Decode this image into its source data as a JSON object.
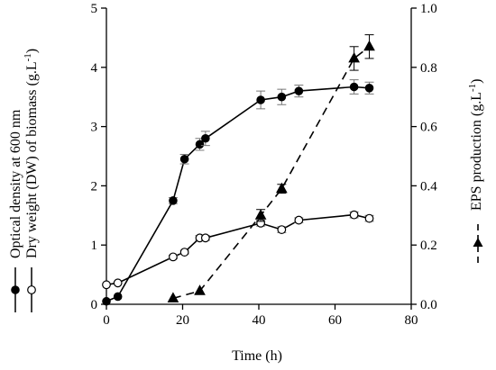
{
  "chart_data": {
    "type": "line",
    "xlabel": "Time (h)",
    "ylabel_left": [
      "Optical density at 600 nm",
      "Dry weight (DW) of biomass (g.L",
      "-1",
      ")"
    ],
    "ylabel_right": [
      "EPS production (g.L",
      "-1",
      ")"
    ],
    "xlim": [
      0,
      80
    ],
    "ylim_left": [
      0,
      5
    ],
    "ylim_right": [
      0,
      1.0
    ],
    "x_ticks": [
      "0",
      "20",
      "40",
      "60",
      "80"
    ],
    "y_left_ticks": [
      "0",
      "1",
      "2",
      "3",
      "4",
      "5"
    ],
    "y_right_ticks": [
      "0.0",
      "0.2",
      "0.4",
      "0.6",
      "0.8",
      "1.0"
    ],
    "series": [
      {
        "axis": "left",
        "marker": "filled-circle",
        "line": "solid",
        "x": [
          0,
          3,
          17.5,
          20.5,
          24.5,
          26,
          40.5,
          46,
          50.5,
          65,
          69
        ],
        "y": [
          0.05,
          0.13,
          1.75,
          2.45,
          2.7,
          2.8,
          3.45,
          3.5,
          3.6,
          3.67,
          3.65
        ],
        "err": [
          0,
          0,
          0.05,
          0.08,
          0.1,
          0.12,
          0.15,
          0.13,
          0.1,
          0.12,
          0.1
        ]
      },
      {
        "axis": "left",
        "marker": "open-circle",
        "line": "solid",
        "x": [
          0,
          3,
          17.5,
          20.5,
          24.5,
          26,
          40.5,
          46,
          50.5,
          65,
          69
        ],
        "y": [
          0.33,
          0.36,
          0.8,
          0.88,
          1.12,
          1.12,
          1.37,
          1.26,
          1.42,
          1.51,
          1.45
        ],
        "err": [
          0,
          0,
          0.03,
          0.03,
          0.04,
          0.04,
          0.05,
          0.05,
          0.04,
          0.05,
          0.05
        ]
      },
      {
        "axis": "right",
        "marker": "filled-triangle",
        "line": "dashed",
        "x": [
          17.5,
          24.5,
          40.5,
          46,
          65,
          69
        ],
        "y": [
          0.02,
          0.045,
          0.3,
          0.39,
          0.83,
          0.87
        ],
        "err": [
          0,
          0,
          0.02,
          0.015,
          0.04,
          0.04
        ]
      }
    ]
  }
}
